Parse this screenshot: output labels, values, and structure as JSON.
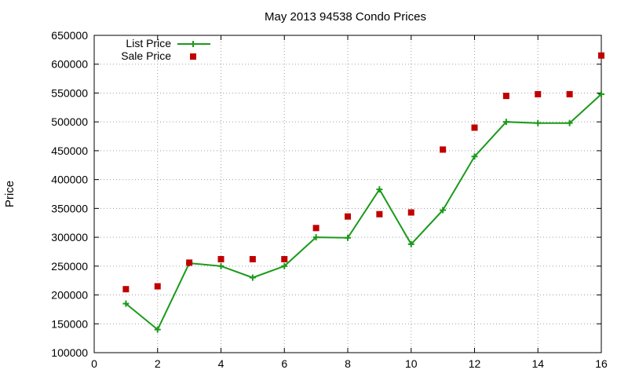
{
  "chart_data": {
    "type": "line",
    "title": "May 2013 94538 Condo Prices",
    "xlabel": "",
    "ylabel": "Price",
    "xlim": [
      0,
      16
    ],
    "ylim": [
      100000,
      650000
    ],
    "xticks": [
      0,
      2,
      4,
      6,
      8,
      10,
      12,
      14,
      16
    ],
    "yticks": [
      100000,
      150000,
      200000,
      250000,
      300000,
      350000,
      400000,
      450000,
      500000,
      550000,
      600000,
      650000
    ],
    "grid": true,
    "legend_position": "top-left",
    "series": [
      {
        "name": "List Price",
        "style": "lines+points",
        "color": "#1a9a1a",
        "x": [
          1,
          2,
          3,
          4,
          5,
          6,
          7,
          8,
          9,
          10,
          11,
          12,
          13,
          14,
          15,
          16
        ],
        "y": [
          185000,
          140000,
          255000,
          250000,
          230000,
          250000,
          300000,
          299000,
          383000,
          288000,
          347000,
          440000,
          500000,
          498000,
          498000,
          548000
        ]
      },
      {
        "name": "Sale Price",
        "style": "points",
        "color": "#c00000",
        "x": [
          1,
          2,
          3,
          4,
          5,
          6,
          7,
          8,
          9,
          10,
          11,
          12,
          13,
          14,
          15,
          16
        ],
        "y": [
          210000,
          215000,
          256000,
          262000,
          262000,
          262000,
          316000,
          336000,
          340000,
          343000,
          452000,
          490000,
          545000,
          548000,
          548000,
          615000
        ]
      }
    ]
  }
}
